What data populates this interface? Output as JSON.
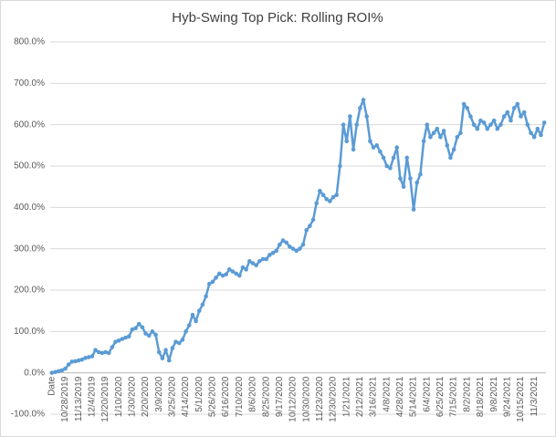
{
  "chart_data": {
    "type": "line",
    "title": "Hyb-Swing Top Pick: Rolling ROI%",
    "categories": [
      "Date",
      null,
      null,
      null,
      "10/28/2019",
      null,
      null,
      null,
      "11/13/2019",
      null,
      null,
      null,
      "12/4/2019",
      null,
      null,
      null,
      "12/20/2019",
      null,
      null,
      null,
      "1/10/2020",
      null,
      null,
      null,
      "1/30/2020",
      null,
      null,
      null,
      "2/20/2020",
      null,
      null,
      null,
      "3/9/2020",
      null,
      null,
      null,
      "3/25/2020",
      null,
      null,
      null,
      "4/14/2020",
      null,
      null,
      null,
      "5/1/2020",
      null,
      null,
      null,
      "5/26/2020",
      null,
      null,
      null,
      "6/16/2020",
      null,
      null,
      null,
      "7/10/2020",
      null,
      null,
      null,
      "8/6/2020",
      null,
      null,
      null,
      "8/25/2020",
      null,
      null,
      null,
      "9/17/2020",
      null,
      null,
      null,
      "10/12/2020",
      null,
      null,
      null,
      "10/30/2020",
      null,
      null,
      null,
      "11/23/2020",
      null,
      null,
      null,
      "12/30/2020",
      null,
      null,
      null,
      "1/21/2021",
      null,
      null,
      null,
      "2/12/2021",
      null,
      null,
      null,
      "3/16/2021",
      null,
      null,
      null,
      "4/8/2021",
      null,
      null,
      null,
      "4/28/2021",
      null,
      null,
      null,
      "5/14/2021",
      null,
      null,
      null,
      "6/4/2021",
      null,
      null,
      null,
      "6/25/2021",
      null,
      null,
      null,
      "7/15/2021",
      null,
      null,
      null,
      "8/2/2021",
      null,
      null,
      null,
      "8/18/2021",
      null,
      null,
      null,
      "9/8/2021",
      null,
      null,
      null,
      "9/24/2021",
      null,
      null,
      null,
      "10/15/2021",
      null,
      null,
      null,
      "11/3/2021",
      null,
      null,
      null
    ],
    "series": [
      {
        "name": "Rolling ROI%",
        "color": "#5b9bd5",
        "values": [
          0,
          2,
          4,
          6,
          10,
          20,
          27,
          28,
          30,
          32,
          36,
          38,
          40,
          55,
          50,
          48,
          50,
          48,
          62,
          75,
          78,
          82,
          85,
          88,
          105,
          108,
          118,
          110,
          95,
          90,
          100,
          92,
          50,
          35,
          55,
          30,
          60,
          75,
          72,
          80,
          100,
          115,
          140,
          125,
          150,
          165,
          185,
          215,
          220,
          230,
          240,
          235,
          238,
          250,
          245,
          240,
          235,
          255,
          250,
          270,
          265,
          260,
          270,
          275,
          275,
          285,
          290,
          295,
          310,
          320,
          315,
          305,
          300,
          295,
          300,
          310,
          345,
          355,
          370,
          410,
          440,
          430,
          420,
          415,
          425,
          430,
          500,
          600,
          560,
          620,
          540,
          600,
          640,
          660,
          620,
          560,
          545,
          550,
          535,
          520,
          500,
          495,
          520,
          545,
          470,
          450,
          520,
          470,
          395,
          460,
          480,
          560,
          600,
          570,
          580,
          590,
          570,
          585,
          550,
          520,
          540,
          570,
          580,
          650,
          640,
          620,
          600,
          590,
          610,
          605,
          590,
          600,
          610,
          590,
          600,
          620,
          630,
          610,
          640,
          650,
          620,
          630,
          600,
          580,
          570,
          590,
          575,
          605
        ]
      }
    ],
    "ylim": [
      -100,
      800
    ],
    "yticks": [
      {
        "value": -100,
        "label": "-100.0%"
      },
      {
        "value": 0,
        "label": "0.0%"
      },
      {
        "value": 100,
        "label": "100.0%"
      },
      {
        "value": 200,
        "label": "200.0%"
      },
      {
        "value": 300,
        "label": "300.0%"
      },
      {
        "value": 400,
        "label": "400.0%"
      },
      {
        "value": 500,
        "label": "500.0%"
      },
      {
        "value": 600,
        "label": "600.0%"
      },
      {
        "value": 700,
        "label": "700.0%"
      },
      {
        "value": 800,
        "label": "800.0%"
      }
    ],
    "grid": true
  }
}
